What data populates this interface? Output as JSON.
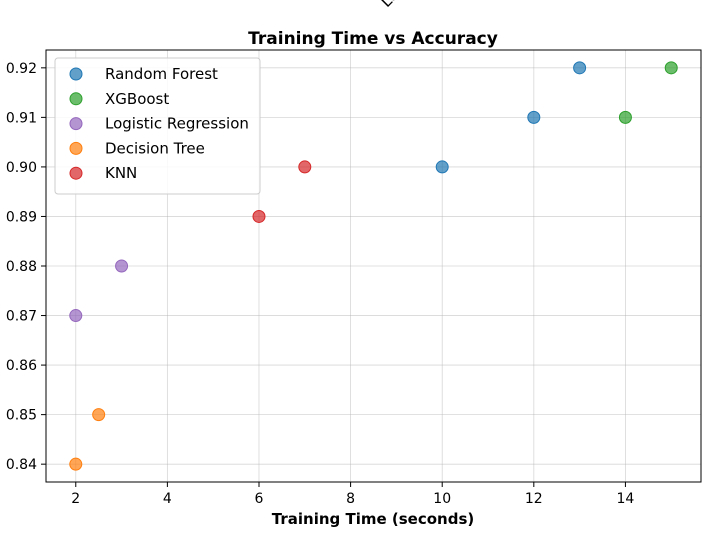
{
  "corner_fragment": "Lo",
  "chart_data": {
    "type": "scatter",
    "title": "Training Time vs Accuracy",
    "xlabel": "Training Time (seconds)",
    "ylabel": "",
    "xlim": [
      1.35,
      15.65
    ],
    "ylim": [
      0.8364,
      0.9236
    ],
    "xticks": [
      2,
      4,
      6,
      8,
      10,
      12,
      14
    ],
    "yticks": [
      0.84,
      0.85,
      0.86,
      0.87,
      0.88,
      0.89,
      0.9,
      0.91,
      0.92
    ],
    "xtick_labels": [
      "2",
      "4",
      "6",
      "8",
      "10",
      "12",
      "14"
    ],
    "ytick_labels": [
      "0.84",
      "0.85",
      "0.86",
      "0.87",
      "0.88",
      "0.89",
      "0.90",
      "0.91",
      "0.92"
    ],
    "grid": true,
    "legend_position": "top-left",
    "series": [
      {
        "name": "Random Forest",
        "color": "#1f77b4",
        "points": [
          {
            "x": 10,
            "y": 0.9
          },
          {
            "x": 12,
            "y": 0.91
          },
          {
            "x": 13,
            "y": 0.92
          }
        ]
      },
      {
        "name": "XGBoost",
        "color": "#2ca02c",
        "points": [
          {
            "x": 14,
            "y": 0.91
          },
          {
            "x": 15,
            "y": 0.92
          }
        ]
      },
      {
        "name": "Logistic Regression",
        "color": "#9467bd",
        "points": [
          {
            "x": 2,
            "y": 0.87
          },
          {
            "x": 3,
            "y": 0.88
          }
        ]
      },
      {
        "name": "Decision Tree",
        "color": "#ff7f0e",
        "points": [
          {
            "x": 2,
            "y": 0.84
          },
          {
            "x": 2.5,
            "y": 0.85
          }
        ]
      },
      {
        "name": "KNN",
        "color": "#d62728",
        "points": [
          {
            "x": 6,
            "y": 0.89
          },
          {
            "x": 7,
            "y": 0.9
          }
        ]
      }
    ]
  }
}
